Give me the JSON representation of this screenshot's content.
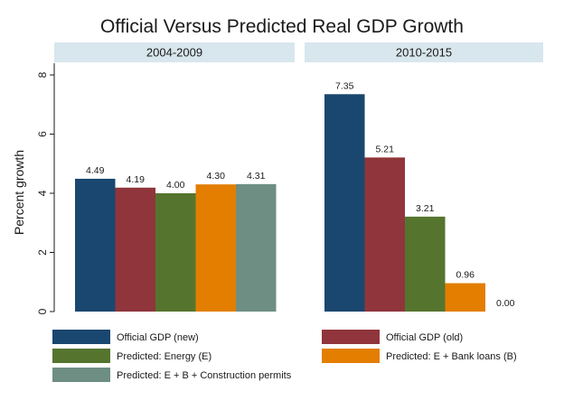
{
  "chart_data": {
    "type": "bar",
    "title": "Official Versus Predicted Real GDP Growth",
    "ylabel": "Percent growth",
    "ylim": [
      0,
      8
    ],
    "yticks": [
      0,
      2,
      4,
      6,
      8
    ],
    "series": [
      {
        "name": "Official GDP (new)",
        "color": "#1a476f"
      },
      {
        "name": "Official GDP (old)",
        "color": "#90353b"
      },
      {
        "name": "Predicted: Energy (E)",
        "color": "#55752f"
      },
      {
        "name": "Predicted: E + Bank loans (B)",
        "color": "#e37e00"
      },
      {
        "name": "Predicted: E + B + Construction permits",
        "color": "#6e8e84"
      }
    ],
    "panels": [
      {
        "title": "2004-2009",
        "values": [
          4.49,
          4.19,
          4.0,
          4.3,
          4.31
        ],
        "labels": [
          "4.49",
          "4.19",
          "4.00",
          "4.30",
          "4.31"
        ]
      },
      {
        "title": "2010-2015",
        "values": [
          7.35,
          5.21,
          3.21,
          0.96,
          0.0
        ],
        "labels": [
          "7.35",
          "5.21",
          "3.21",
          "0.96",
          "0.00"
        ]
      }
    ]
  }
}
